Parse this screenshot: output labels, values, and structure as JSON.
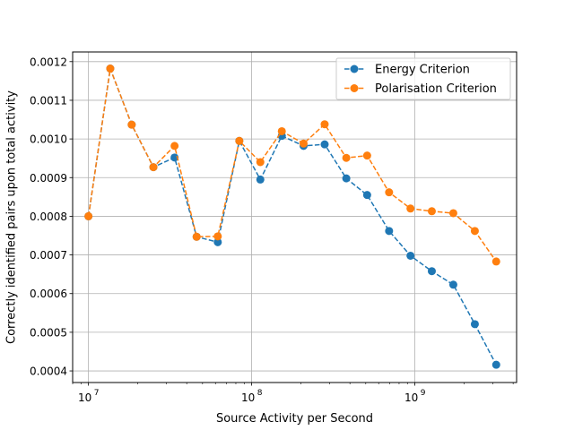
{
  "chart_data": {
    "type": "line",
    "title": "",
    "xlabel": "Source Activity per Second",
    "ylabel": "Correctly identified pairs upon total activity",
    "x_scale": "log",
    "xlim": [
      8000000.0,
      4200000000.0
    ],
    "ylim": [
      0.00037,
      0.001225
    ],
    "grid": true,
    "legend_position": "upper-right",
    "x_ticks": [
      {
        "value": 10000000.0,
        "base": "10",
        "exp": "7"
      },
      {
        "value": 100000000.0,
        "base": "10",
        "exp": "8"
      },
      {
        "value": 1000000000.0,
        "base": "10",
        "exp": "9"
      }
    ],
    "y_ticks": [
      {
        "value": 0.0004,
        "label": "0.0004"
      },
      {
        "value": 0.0005,
        "label": "0.0005"
      },
      {
        "value": 0.0006,
        "label": "0.0006"
      },
      {
        "value": 0.0007,
        "label": "0.0007"
      },
      {
        "value": 0.0008,
        "label": "0.0008"
      },
      {
        "value": 0.0009,
        "label": "0.0009"
      },
      {
        "value": 0.001,
        "label": "0.0010"
      },
      {
        "value": 0.0011,
        "label": "0.0011"
      },
      {
        "value": 0.0012,
        "label": "0.0012"
      }
    ],
    "x": [
      10000000.0,
      13600000.0,
      18400000.0,
      25000000.0,
      33700000.0,
      46000000.0,
      62000000.0,
      84000000.0,
      113000000.0,
      153000000.0,
      208000000.0,
      280000000.0,
      380000000.0,
      510000000.0,
      695000000.0,
      940000000.0,
      1270000000.0,
      1720000000.0,
      2330000000.0,
      3150000000.0
    ],
    "series": [
      {
        "name": "Energy Criterion",
        "color": "#1f77b4",
        "values": [
          0.0008,
          0.001182,
          0.001037,
          0.000927,
          0.000952,
          0.000747,
          0.000733,
          0.000995,
          0.000895,
          0.001008,
          0.000982,
          0.000986,
          0.000898,
          0.000855,
          0.000762,
          0.000698,
          0.000658,
          0.000623,
          0.000521,
          0.000416
        ]
      },
      {
        "name": "Polarisation Criterion",
        "color": "#ff7f0e",
        "values": [
          0.0008,
          0.001182,
          0.001037,
          0.000927,
          0.000982,
          0.000747,
          0.000748,
          0.000995,
          0.00094,
          0.00102,
          0.000988,
          0.001038,
          0.000951,
          0.000957,
          0.000862,
          0.00082,
          0.000813,
          0.000808,
          0.000762,
          0.000683
        ]
      }
    ]
  }
}
